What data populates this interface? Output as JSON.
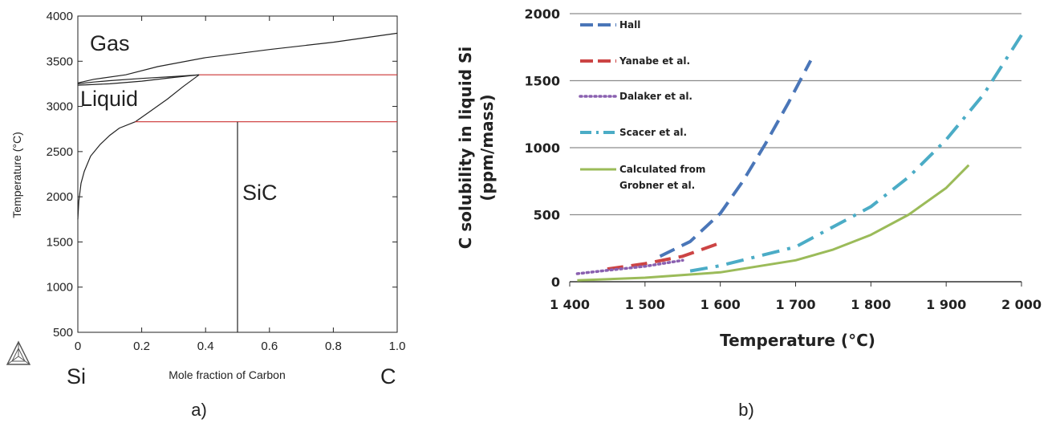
{
  "chart_data": [
    {
      "type": "line",
      "panel_label": "a)",
      "xlabel": "Mole fraction of Carbon",
      "ylabel": "Temperature (°C)",
      "xlim": [
        0,
        1.0
      ],
      "ylim": [
        500,
        4000
      ],
      "x_ticks": [
        "0",
        "0.2",
        "0.4",
        "0.6",
        "0.8",
        "1.0"
      ],
      "y_ticks": [
        "500",
        "1000",
        "1500",
        "2000",
        "2500",
        "3000",
        "3500",
        "4000"
      ],
      "end_labels": {
        "left": "Si",
        "right": "C"
      },
      "region_labels": [
        "Gas",
        "Liquid",
        "SiC"
      ],
      "grid": false,
      "series": [
        {
          "role": "gas-liquidus",
          "color": "#222222",
          "points": [
            [
              0,
              3260
            ],
            [
              0.05,
              3300
            ],
            [
              0.15,
              3350
            ],
            [
              0.25,
              3440
            ],
            [
              0.4,
              3540
            ],
            [
              0.6,
              3630
            ],
            [
              0.8,
              3710
            ],
            [
              1.0,
              3810
            ]
          ]
        },
        {
          "role": "gas-upper-boundary",
          "color": "#222222",
          "points": [
            [
              0,
              3250
            ],
            [
              0.05,
              3270
            ],
            [
              0.1,
              3285
            ],
            [
              0.2,
              3310
            ],
            [
              0.3,
              3330
            ],
            [
              0.38,
              3350
            ]
          ]
        },
        {
          "role": "liquid-lower-boundary",
          "color": "#222222",
          "points": [
            [
              0,
              3235
            ],
            [
              0.03,
              3240
            ],
            [
              0.1,
              3250
            ],
            [
              0.2,
              3280
            ],
            [
              0.3,
              3320
            ],
            [
              0.38,
              3350
            ]
          ]
        },
        {
          "role": "liquid-to-peritectic",
          "color": "#222222",
          "points": [
            [
              0.18,
              2830
            ],
            [
              0.22,
              2930
            ],
            [
              0.28,
              3080
            ],
            [
              0.33,
              3220
            ],
            [
              0.38,
              3350
            ]
          ]
        },
        {
          "role": "silicon-liquidus",
          "color": "#222222",
          "points": [
            [
              0,
              1750
            ],
            [
              0.003,
              1950
            ],
            [
              0.01,
              2150
            ],
            [
              0.02,
              2280
            ],
            [
              0.04,
              2450
            ],
            [
              0.07,
              2580
            ],
            [
              0.1,
              2680
            ],
            [
              0.13,
              2760
            ],
            [
              0.18,
              2830
            ]
          ]
        },
        {
          "role": "peritectic-isotherm",
          "color": "#cc3333",
          "points": [
            [
              0.38,
              3350
            ],
            [
              1.0,
              3350
            ]
          ]
        },
        {
          "role": "eutectic-isotherm",
          "color": "#cc3333",
          "points": [
            [
              0.18,
              2830
            ],
            [
              1.0,
              2830
            ]
          ]
        },
        {
          "role": "sic-line",
          "color": "#222222",
          "points": [
            [
              0.5,
              500
            ],
            [
              0.5,
              2830
            ]
          ]
        }
      ]
    },
    {
      "type": "line",
      "panel_label": "b)",
      "xlabel": "Temperature (°C)",
      "ylabel": "C solubility in liquid Si (ppm/mass)",
      "xlim": [
        1400,
        2000
      ],
      "ylim": [
        0,
        2000
      ],
      "x_ticks": [
        "1 400",
        "1 500",
        "1 600",
        "1 700",
        "1 800",
        "1 900",
        "2 000"
      ],
      "y_ticks": [
        "0",
        "500",
        "1000",
        "1500",
        "2000"
      ],
      "grid": true,
      "legend_position": "top-left",
      "series": [
        {
          "name": "Hall",
          "color": "#4a76b8",
          "style": "dash",
          "x": [
            1520,
            1560,
            1600,
            1630,
            1660,
            1690,
            1720
          ],
          "y": [
            190,
            300,
            510,
            750,
            1030,
            1330,
            1650
          ]
        },
        {
          "name": "Yanabe et al.",
          "color": "#cc4444",
          "style": "dash",
          "x": [
            1450,
            1500,
            1550,
            1600
          ],
          "y": [
            95,
            135,
            190,
            290
          ]
        },
        {
          "name": "Dalaker et al.",
          "color": "#8a60b0",
          "style": "dot",
          "x": [
            1410,
            1450,
            1500,
            1550
          ],
          "y": [
            60,
            85,
            115,
            160
          ]
        },
        {
          "name": "Scacer et al.",
          "color": "#4bacc6",
          "style": "dashdot",
          "x": [
            1560,
            1600,
            1700,
            1800,
            1850,
            1900,
            1950,
            2000
          ],
          "y": [
            80,
            120,
            260,
            560,
            780,
            1060,
            1400,
            1840
          ]
        },
        {
          "name": "Calculated from Grobner et al.",
          "legend_lines": [
            "Calculated from",
            "Grobner et al."
          ],
          "color": "#9bbb59",
          "style": "solid",
          "x": [
            1410,
            1500,
            1600,
            1700,
            1750,
            1800,
            1850,
            1900,
            1930
          ],
          "y": [
            10,
            30,
            70,
            160,
            240,
            350,
            500,
            700,
            870
          ]
        }
      ]
    }
  ]
}
